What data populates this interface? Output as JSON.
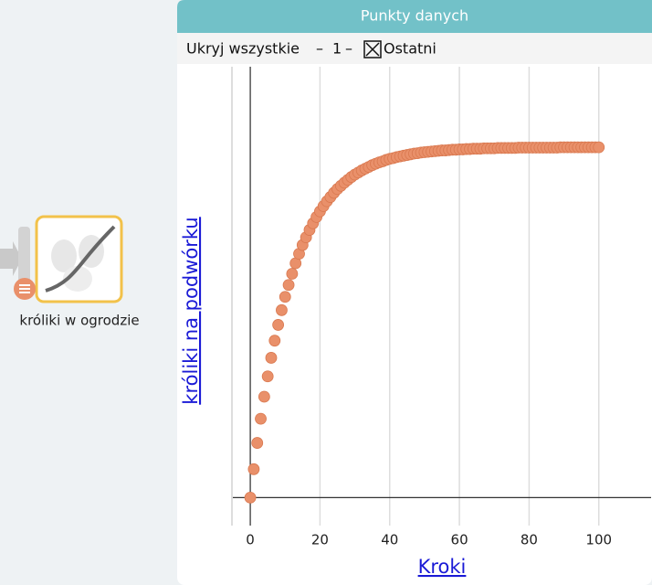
{
  "node": {
    "label": "króliki w ogrodzie"
  },
  "panel": {
    "title": "Punkty danych",
    "toolbar": [
      "Ukryj wszystkie",
      "–",
      "1",
      "–",
      "Ostatni"
    ]
  },
  "chart_data": {
    "type": "scatter",
    "x_label": "Kroki",
    "y_label": "króliki na podwórku",
    "color": "#e9906a",
    "x": [
      0,
      1,
      2,
      3,
      4,
      5,
      6,
      7,
      8,
      9,
      10,
      11,
      12,
      13,
      14,
      15,
      16,
      17,
      18,
      19,
      20,
      21,
      22,
      23,
      24,
      25,
      26,
      27,
      28,
      29,
      30,
      31,
      32,
      33,
      34,
      35,
      36,
      37,
      38,
      39,
      40,
      41,
      42,
      43,
      44,
      45,
      46,
      47,
      48,
      49,
      50,
      51,
      52,
      53,
      54,
      55,
      56,
      57,
      58,
      59,
      60,
      61,
      62,
      63,
      64,
      65,
      66,
      67,
      68,
      69,
      70,
      71,
      72,
      73,
      74,
      75,
      76,
      77,
      78,
      79,
      80,
      81,
      82,
      83,
      84,
      85,
      86,
      87,
      88,
      89,
      90,
      91,
      92,
      93,
      94,
      95,
      96,
      97,
      98,
      99,
      100
    ],
    "values": [
      0,
      8.1,
      15.6,
      22.5,
      28.8,
      34.6,
      39.9,
      44.8,
      49.3,
      53.5,
      57.3,
      60.7,
      63.9,
      66.9,
      69.6,
      72.1,
      74.3,
      76.4,
      78.3,
      80.1,
      81.7,
      83.2,
      84.6,
      85.8,
      87.0,
      88.1,
      89.0,
      89.9,
      90.7,
      91.5,
      92.2,
      92.8,
      93.4,
      93.9,
      94.4,
      94.9,
      95.3,
      95.7,
      96.0,
      96.4,
      96.7,
      96.9,
      97.2,
      97.4,
      97.6,
      97.8,
      98.0,
      98.2,
      98.3,
      98.5,
      98.6,
      98.7,
      98.8,
      98.9,
      99.0,
      99.1,
      99.1,
      99.2,
      99.3,
      99.3,
      99.4,
      99.4,
      99.5,
      99.5,
      99.6,
      99.6,
      99.6,
      99.7,
      99.7,
      99.7,
      99.7,
      99.8,
      99.8,
      99.8,
      99.8,
      99.8,
      99.8,
      99.9,
      99.9,
      99.9,
      99.9,
      99.9,
      99.9,
      99.9,
      99.9,
      99.9,
      99.9,
      99.9,
      99.9,
      100.0,
      100.0,
      100.0,
      100.0,
      100.0,
      100.0,
      100.0,
      100.0,
      100.0,
      100.0,
      100.0,
      100.0
    ],
    "xlim": [
      -5,
      115
    ],
    "ylim": [
      -8,
      123
    ],
    "xticks": [
      0,
      20,
      40,
      60,
      80,
      100
    ],
    "grid": true
  }
}
